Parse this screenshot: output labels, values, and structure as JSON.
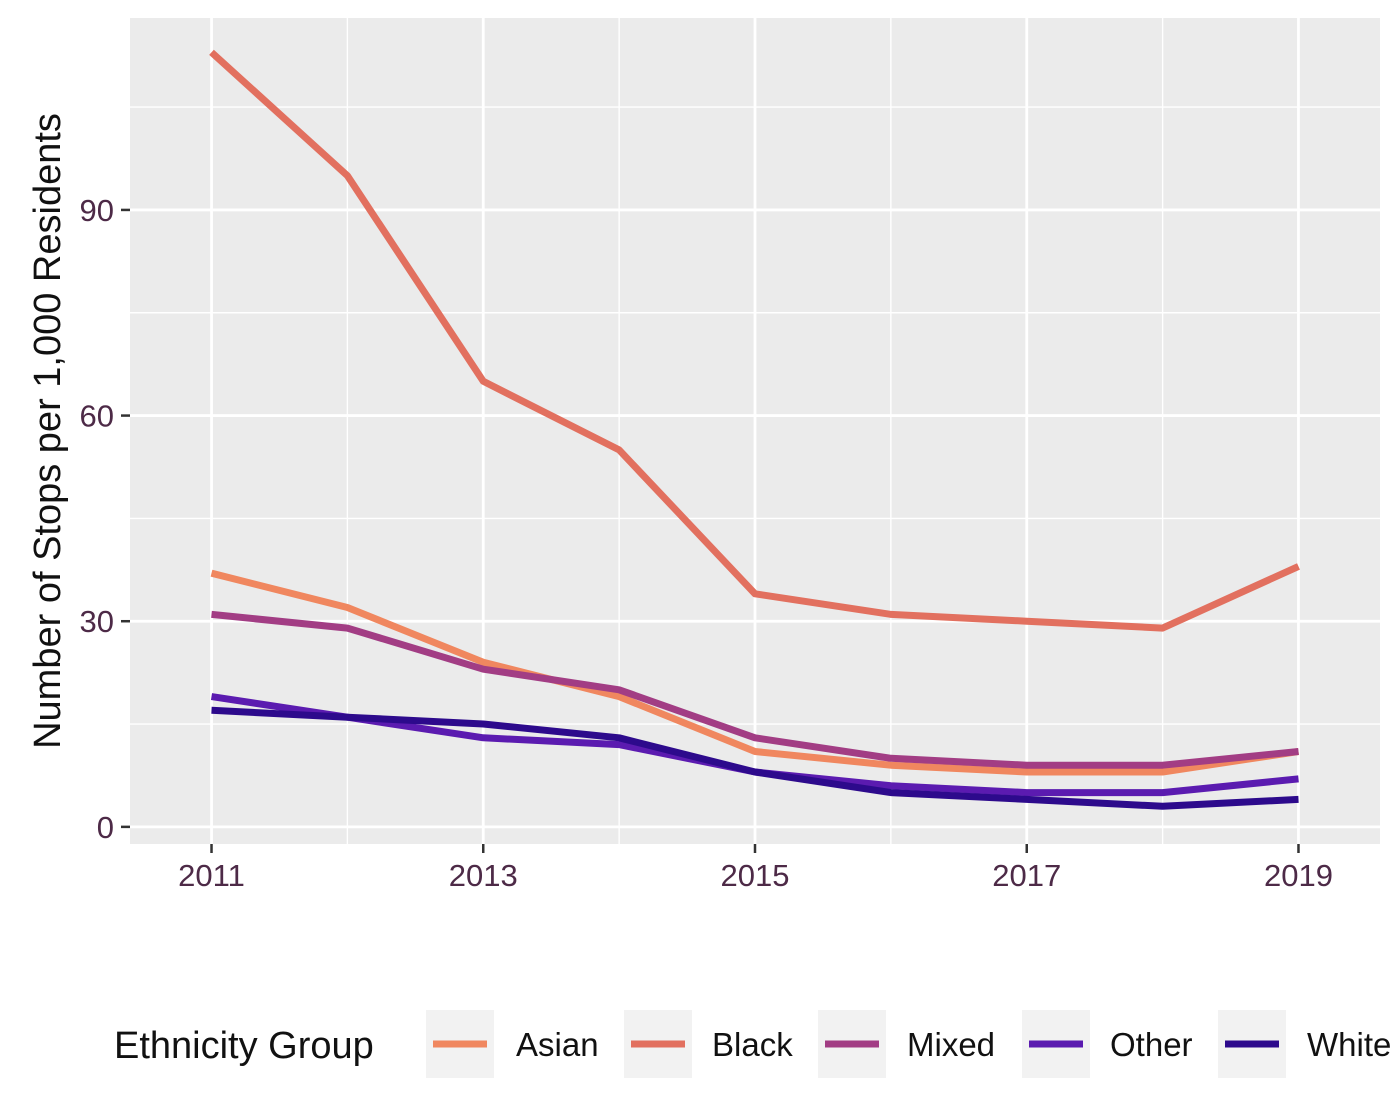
{
  "chart_data": {
    "type": "line",
    "x": [
      2011,
      2012,
      2013,
      2014,
      2015,
      2016,
      2017,
      2018,
      2019
    ],
    "xticks": [
      "2011",
      "2013",
      "2015",
      "2017",
      "2019"
    ],
    "xtick_values": [
      2011,
      2013,
      2015,
      2017,
      2019
    ],
    "yticks": [
      "0",
      "30",
      "60",
      "90"
    ],
    "ytick_values": [
      0,
      30,
      60,
      90
    ],
    "xlim": [
      2010.4,
      2019.6
    ],
    "ylim": [
      -2.5,
      118
    ],
    "xlabel": "",
    "ylabel": "Number of Stops per 1,000 Residents",
    "grid": true,
    "legend_title": "Ethnicity Group",
    "legend_position": "bottom",
    "series": [
      {
        "name": "Asian",
        "color": "#f0875f",
        "values": [
          37,
          32,
          24,
          19,
          11,
          9,
          8,
          8,
          11
        ]
      },
      {
        "name": "Black",
        "color": "#e2705f",
        "values": [
          113,
          95,
          65,
          55,
          34,
          31,
          30,
          29,
          38
        ]
      },
      {
        "name": "Mixed",
        "color": "#a23d84",
        "values": [
          31,
          29,
          23,
          20,
          13,
          10,
          9,
          9,
          11
        ]
      },
      {
        "name": "Other",
        "color": "#5b1bb0",
        "values": [
          19,
          16,
          13,
          12,
          8,
          6,
          5,
          5,
          7
        ]
      },
      {
        "name": "White",
        "color": "#2d0a8c",
        "values": [
          17,
          16,
          15,
          13,
          8,
          5,
          4,
          3,
          4
        ]
      }
    ]
  }
}
